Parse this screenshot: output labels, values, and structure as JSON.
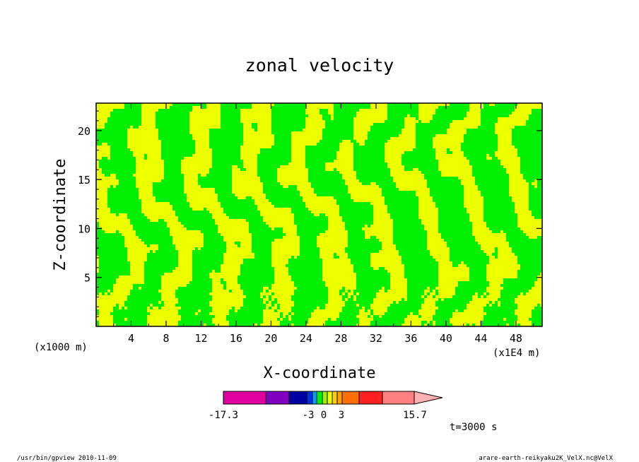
{
  "chart_data": {
    "type": "heatmap",
    "title": "zonal velocity",
    "xlabel": "X-coordinate",
    "ylabel": "Z-coordinate",
    "x_unit_left": "(x1000 m)",
    "x_unit_right": "(x1E4 m)",
    "xlim": [
      0,
      51
    ],
    "ylim": [
      0,
      22.8
    ],
    "x_ticks": [
      "4",
      "8",
      "12",
      "16",
      "20",
      "24",
      "28",
      "32",
      "36",
      "40",
      "44",
      "48"
    ],
    "y_ticks": [
      "5",
      "10",
      "15",
      "20"
    ],
    "field_colors": {
      "low": "#00ee00",
      "high": "#eeff00"
    },
    "colorbar": {
      "colors": [
        "#e000a0",
        "#8000c0",
        "#0000a0",
        "#0030e0",
        "#00a0ff",
        "#00ee00",
        "#a0ee00",
        "#eeff00",
        "#ffd000",
        "#ffa000",
        "#ff7000",
        "#ff2020",
        "#ff8080",
        "#ffb0b0"
      ],
      "min_label": "-17.3",
      "labels": [
        "-3",
        "0",
        "3"
      ],
      "max_label": "15.7"
    },
    "time_label": "t=3000 s"
  },
  "footer": {
    "left": "/usr/bin/gpview  2010-11-09",
    "right": "arare-earth-reikyaku2K_VelX.nc@VelX"
  }
}
